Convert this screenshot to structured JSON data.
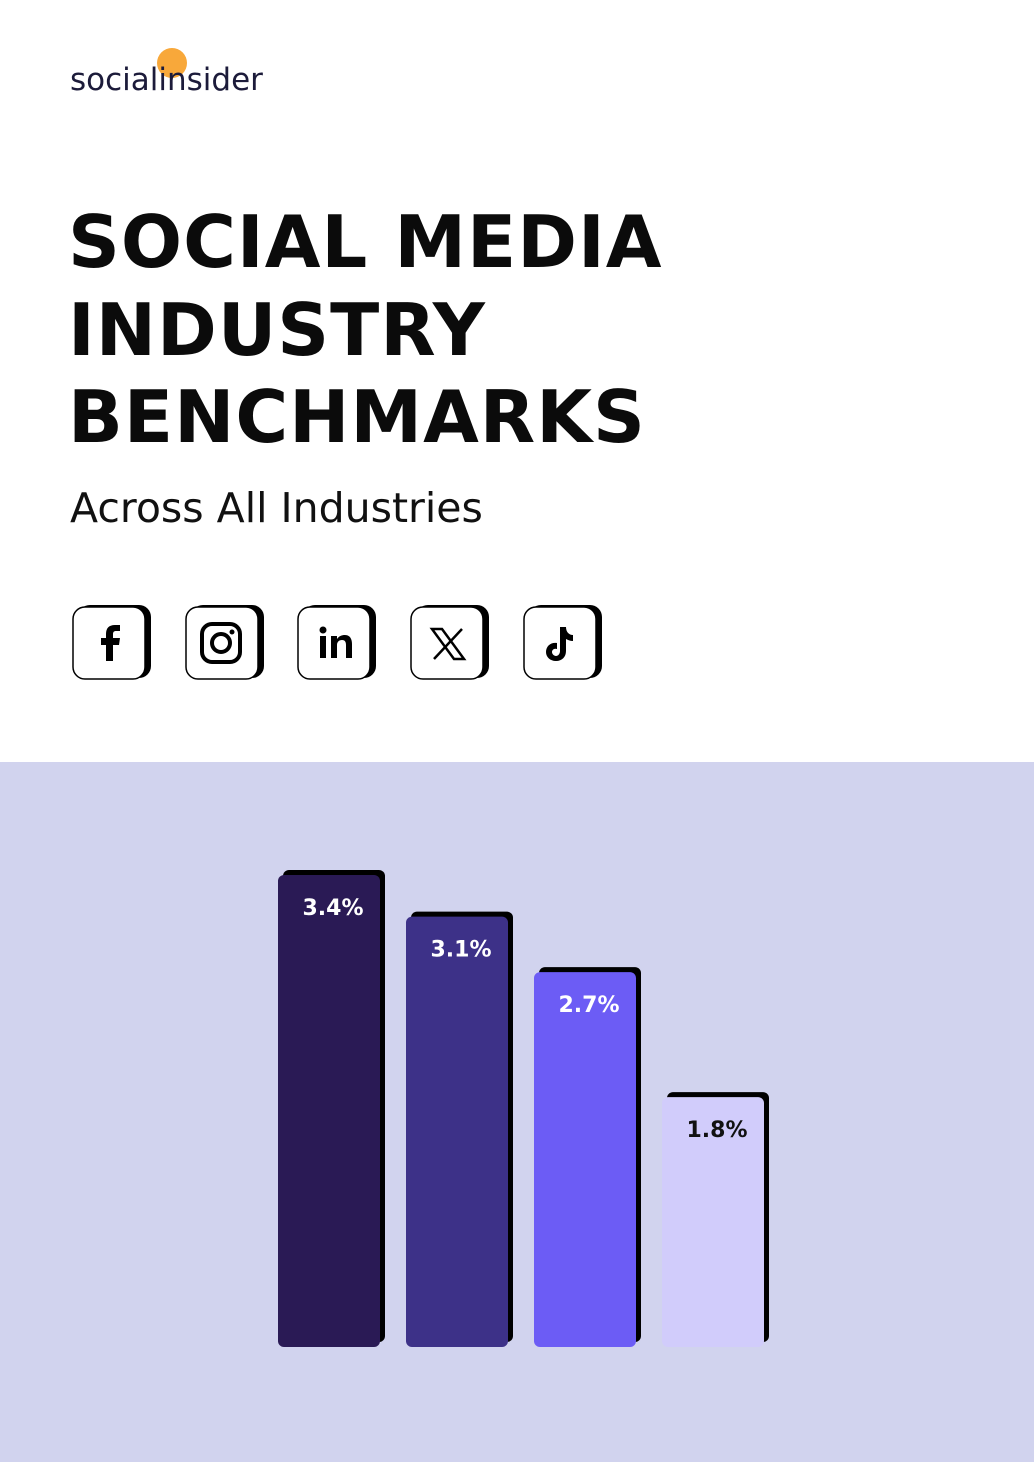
{
  "brand": "socialinsider",
  "title": [
    "SOCIAL MEDIA",
    "INDUSTRY",
    "BENCHMARKS"
  ],
  "subtitle": "Across All Industries",
  "chart_data": {
    "type": "bar",
    "values": [
      3.4,
      3.1,
      2.7,
      1.8
    ],
    "value_labels": [
      "3.4%",
      "3.1%",
      "2.7%",
      "1.8%"
    ],
    "colors": [
      "#2a1a55",
      "#3d3188",
      "#6c5cf5",
      "#d1ccfb"
    ]
  }
}
